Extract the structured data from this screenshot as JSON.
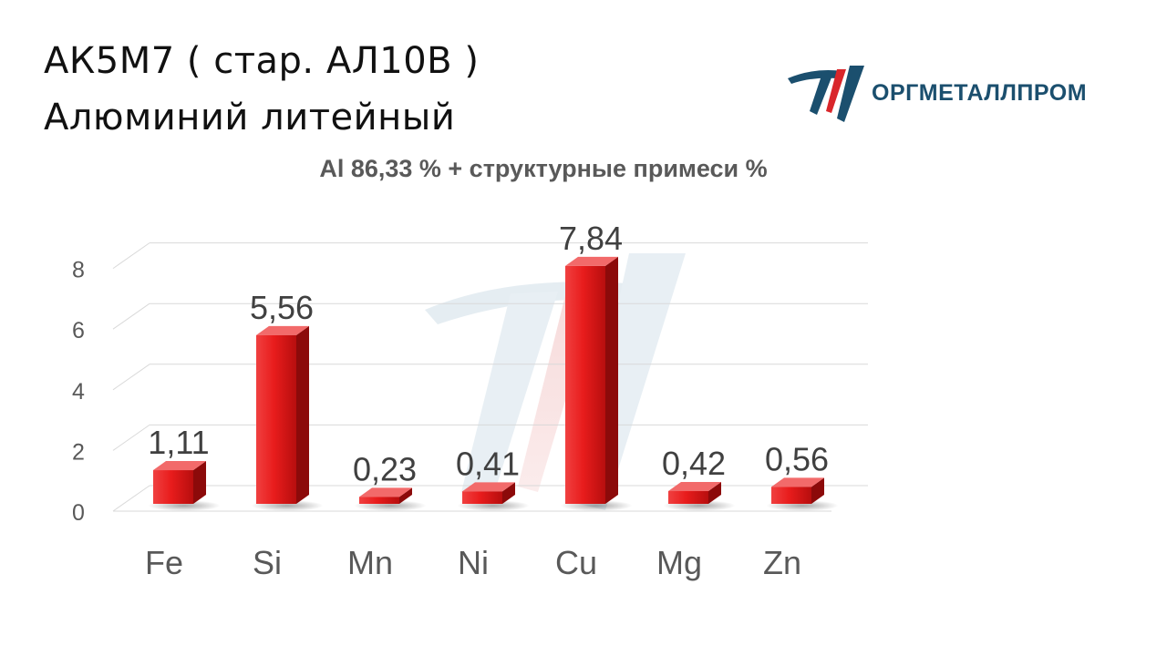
{
  "header": {
    "title_line1": "АК5М7 ( стар. АЛ10В )",
    "title_line2": "Алюминий литейный"
  },
  "logo": {
    "text": "ОРГМЕТАЛЛПРОМ",
    "colors": {
      "primary": "#1b4f6e",
      "accent": "#d9262b"
    }
  },
  "chart_data": {
    "type": "bar",
    "title": "Al 86,33 % + структурные примеси %",
    "categories": [
      "Fe",
      "Si",
      "Mn",
      "Ni",
      "Cu",
      "Mg",
      "Zn"
    ],
    "values": [
      1.11,
      5.56,
      0.23,
      0.41,
      7.84,
      0.42,
      0.56
    ],
    "value_labels": [
      "1,11",
      "5,56",
      "0,23",
      "0,41",
      "7,84",
      "0,42",
      "0,56"
    ],
    "ylim": [
      0,
      8
    ],
    "yticks": [
      0,
      2,
      4,
      6,
      8
    ],
    "grid": true,
    "bar_color": "#e21c1c",
    "style": "3d"
  }
}
